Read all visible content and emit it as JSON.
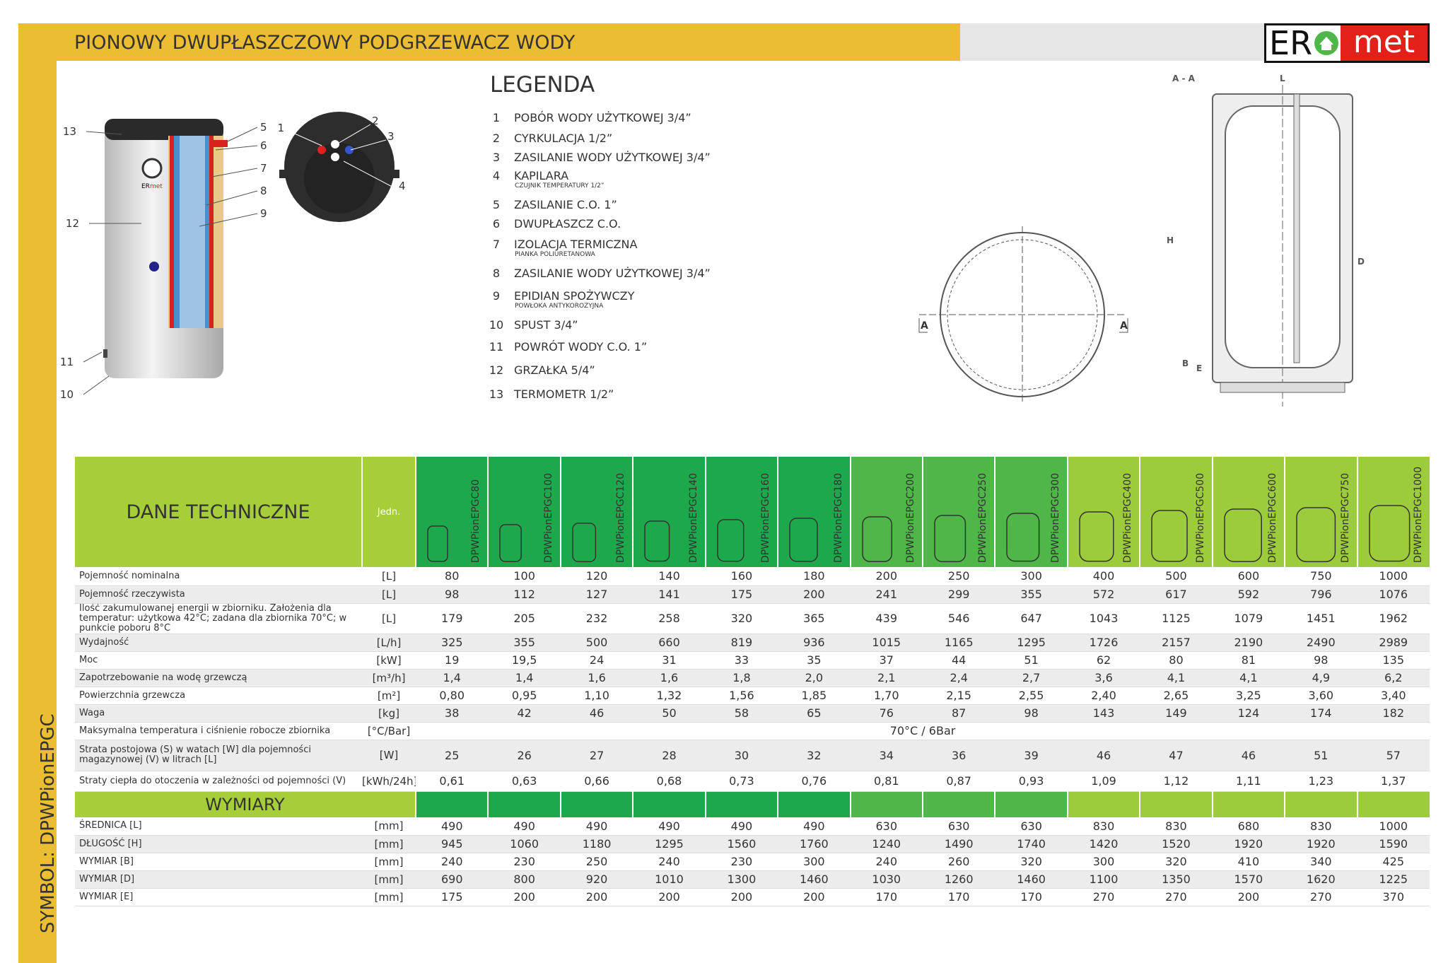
{
  "header": {
    "title": "PIONOWY DWUPŁASZCZOWY PODGRZEWACZ WODY",
    "logo": {
      "left": "ER",
      "right": "met"
    }
  },
  "symbol": "SYMBOL: DPWPionEPGC",
  "product_image": {
    "badge": {
      "left": "ER",
      "right": "met"
    },
    "callouts": [
      "13",
      "12",
      "11",
      "10",
      "5",
      "6",
      "7",
      "8",
      "9"
    ]
  },
  "top_view": {
    "callouts": [
      "1",
      "2",
      "3",
      "4"
    ]
  },
  "section_view": {
    "labels": [
      "A",
      "A"
    ]
  },
  "cross_section": {
    "labels": [
      "A - A",
      "L",
      "H",
      "D",
      "B",
      "E"
    ]
  },
  "legend": {
    "title": "LEGENDA",
    "items": [
      {
        "number": "1",
        "text": "POBÓR WODY UŻYTKOWEJ 3/4”"
      },
      {
        "number": "2",
        "text": "CYRKULACJA 1/2”"
      },
      {
        "number": "3",
        "text": "ZASILANIE WODY UŻYTKOWEJ 3/4”"
      },
      {
        "number": "4",
        "text": "KAPILARA",
        "note": "CZUJNIK TEMPERATURY 1/2”"
      },
      {
        "number": "5",
        "text": "ZASILANIE C.O. 1”"
      },
      {
        "number": "6",
        "text": "DWUPŁASZCZ C.O."
      },
      {
        "number": "7",
        "text": "IZOLACJA TERMICZNA",
        "note": "PIANKA POLIURETANOWA"
      },
      {
        "number": "8",
        "text": "ZASILANIE WODY UŻYTKOWEJ 3/4”"
      },
      {
        "number": "9",
        "text": "EPIDIAN SPOŻYWCZY",
        "note": "POWŁOKA ANTYKOROZYJNA"
      },
      {
        "number": "10",
        "text": "SPUST 3/4”"
      },
      {
        "number": "11",
        "text": "POWRÓT WODY C.O. 1”"
      },
      {
        "number": "12",
        "text": "GRZAŁKA 5/4”"
      },
      {
        "number": "13",
        "text": "TERMOMETR 1/2”"
      }
    ]
  },
  "table": {
    "title": "DANE TECHNICZNE",
    "unit_header": "Jedn.",
    "models": [
      "DPWPionEPGC80",
      "DPWPionEPGC100",
      "DPWPionEPGC120",
      "DPWPionEPGC140",
      "DPWPionEPGC160",
      "DPWPionEPGC180",
      "DPWPionEPGC200",
      "DPWPionEPGC250",
      "DPWPionEPGC300",
      "DPWPionEPGC400",
      "DPWPionEPGC500",
      "DPWPionEPGC600",
      "DPWPionEPGC750",
      "DPWPionEPGC1000"
    ],
    "rows": [
      {
        "label": "Pojemność nominalna",
        "unit": "[L]",
        "values": [
          "80",
          "100",
          "120",
          "140",
          "160",
          "180",
          "200",
          "250",
          "300",
          "400",
          "500",
          "600",
          "750",
          "1000"
        ]
      },
      {
        "label": "Pojemność rzeczywista",
        "unit": "[L]",
        "values": [
          "98",
          "112",
          "127",
          "141",
          "175",
          "200",
          "241",
          "299",
          "355",
          "572",
          "617",
          "592",
          "796",
          "1076"
        ]
      },
      {
        "label": "Ilość zakumulowanej energii w zbiorniku. Założenia dla temperatur: użytkowa 42°C; zadana dla zbiornika 70°C; w punkcie poboru 8°C",
        "unit": "[L]",
        "values": [
          "179",
          "205",
          "232",
          "258",
          "320",
          "365",
          "439",
          "546",
          "647",
          "1043",
          "1125",
          "1079",
          "1451",
          "1962"
        ]
      },
      {
        "label": "Wydajność",
        "unit": "[L/h]",
        "values": [
          "325",
          "355",
          "500",
          "660",
          "819",
          "936",
          "1015",
          "1165",
          "1295",
          "1726",
          "2157",
          "2190",
          "2490",
          "2989"
        ]
      },
      {
        "label": "Moc",
        "unit": "[kW]",
        "values": [
          "19",
          "19,5",
          "24",
          "31",
          "33",
          "35",
          "37",
          "44",
          "51",
          "62",
          "80",
          "81",
          "98",
          "135"
        ]
      },
      {
        "label": "Zapotrzebowanie na wodę grzewczą",
        "unit": "[m³/h]",
        "values": [
          "1,4",
          "1,4",
          "1,6",
          "1,6",
          "1,8",
          "2,0",
          "2,1",
          "2,4",
          "2,7",
          "3,6",
          "4,1",
          "4,1",
          "4,9",
          "6,2"
        ]
      },
      {
        "label": "Powierzchnia grzewcza",
        "unit": "[m²]",
        "values": [
          "0,80",
          "0,95",
          "1,10",
          "1,32",
          "1,56",
          "1,85",
          "1,70",
          "2,15",
          "2,55",
          "2,40",
          "2,65",
          "3,25",
          "3,60",
          "3,40"
        ]
      },
      {
        "label": "Waga",
        "unit": "[kg]",
        "values": [
          "38",
          "42",
          "46",
          "50",
          "58",
          "65",
          "76",
          "87",
          "98",
          "143",
          "149",
          "124",
          "174",
          "182"
        ]
      },
      {
        "label": "Maksymalna temperatura i ciśnienie robocze zbiornika",
        "unit": "[°C/Bar]",
        "value": "70°C / 6Bar"
      },
      {
        "label": "Strata postojowa (S) w watach [W] dla pojemności magazynowej (V) w litrach [L]",
        "unit": "[W]",
        "values": [
          "25",
          "26",
          "27",
          "28",
          "30",
          "32",
          "34",
          "36",
          "39",
          "46",
          "47",
          "46",
          "51",
          "57"
        ]
      },
      {
        "label": "Straty ciepła do otoczenia w zależności od pojemności (V)",
        "unit": "[kWh/24h]",
        "values": [
          "0,61",
          "0,63",
          "0,66",
          "0,68",
          "0,73",
          "0,76",
          "0,81",
          "0,87",
          "0,93",
          "1,09",
          "1,12",
          "1,11",
          "1,23",
          "1,37"
        ]
      }
    ]
  },
  "dimensions": {
    "title": "WYMIARY",
    "rows": [
      {
        "label": "ŚREDNICA [L]",
        "unit": "[mm]",
        "values": [
          "490",
          "490",
          "490",
          "490",
          "490",
          "490",
          "630",
          "630",
          "630",
          "830",
          "830",
          "680",
          "830",
          "1000"
        ]
      },
      {
        "label": "DŁUGOŚĆ [H]",
        "unit": "[mm]",
        "values": [
          "945",
          "1060",
          "1180",
          "1295",
          "1560",
          "1760",
          "1240",
          "1490",
          "1740",
          "1420",
          "1520",
          "1920",
          "1920",
          "1590"
        ]
      },
      {
        "label": "WYMIAR [B]",
        "unit": "[mm]",
        "values": [
          "240",
          "230",
          "250",
          "240",
          "230",
          "300",
          "240",
          "260",
          "320",
          "300",
          "320",
          "410",
          "340",
          "425"
        ]
      },
      {
        "label": "WYMIAR [D]",
        "unit": "[mm]",
        "values": [
          "690",
          "800",
          "920",
          "1010",
          "1300",
          "1460",
          "1030",
          "1260",
          "1460",
          "1100",
          "1350",
          "1570",
          "1620",
          "1225"
        ]
      },
      {
        "label": "WYMIAR [E]",
        "unit": "[mm]",
        "values": [
          "175",
          "200",
          "200",
          "200",
          "200",
          "200",
          "170",
          "170",
          "170",
          "270",
          "270",
          "200",
          "270",
          "370"
        ]
      }
    ]
  }
}
